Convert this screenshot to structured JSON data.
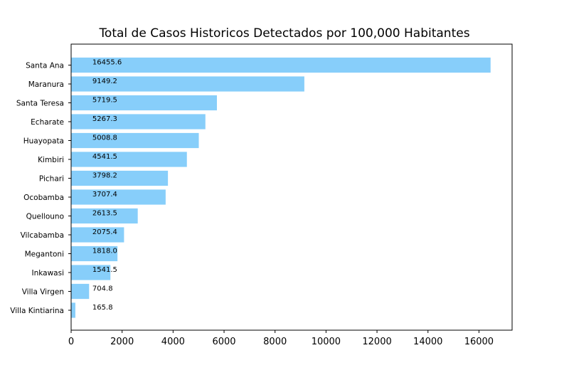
{
  "chart_data": {
    "type": "bar",
    "orientation": "horizontal",
    "title": "Total de Casos Historicos Detectados por 100,000 Habitantes",
    "xlabel": "",
    "ylabel": "",
    "categories": [
      "Santa Ana",
      "Maranura",
      "Santa Teresa",
      "Echarate",
      "Huayopata",
      "Kimbiri",
      "Pichari",
      "Ocobamba",
      "Quellouno",
      "Vilcabamba",
      "Megantoni",
      "Inkawasi",
      "Villa Virgen",
      "Villa Kintiarina"
    ],
    "values": [
      16455.6,
      9149.2,
      5719.5,
      5267.3,
      5008.8,
      4541.5,
      3798.2,
      3707.4,
      2613.5,
      2075.4,
      1818.0,
      1541.5,
      704.8,
      165.8
    ],
    "value_labels": [
      "16455.6",
      "9149.2",
      "5719.5",
      "5267.3",
      "5008.8",
      "4541.5",
      "3798.2",
      "3707.4",
      "2613.5",
      "2075.4",
      "1818.0",
      "1541.5",
      "704.8",
      "165.8"
    ],
    "xlim": [
      0,
      17300
    ],
    "xticks": [
      0,
      2000,
      4000,
      6000,
      8000,
      10000,
      12000,
      14000,
      16000
    ],
    "xtick_labels": [
      "0",
      "2000",
      "4000",
      "6000",
      "8000",
      "10000",
      "12000",
      "14000",
      "16000"
    ],
    "label_anchor_value": 835,
    "grid": false,
    "legend": "none",
    "bar_color": "#87cefa"
  }
}
